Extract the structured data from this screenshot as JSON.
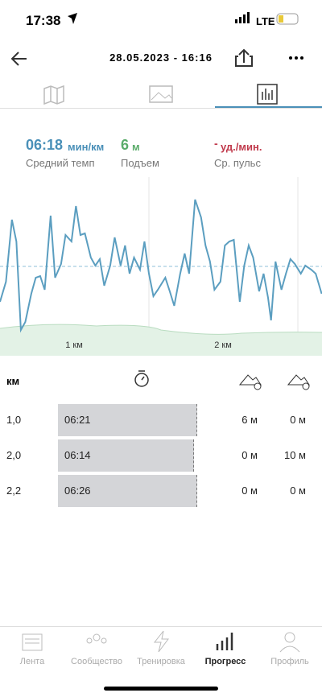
{
  "status": {
    "time": "17:38",
    "network": "LTE"
  },
  "header": {
    "title": "28.05.2023 - 16:16"
  },
  "stats": [
    {
      "value": "06:18",
      "unit": "мин/км",
      "label": "Средний темп"
    },
    {
      "value": "6",
      "unit": "м",
      "label": "Подъем"
    },
    {
      "value": "-",
      "unit": "уд./мин.",
      "label": "Ср. пульс"
    }
  ],
  "chart_data": {
    "type": "line",
    "x_labels": [
      "1 км",
      "2 км"
    ],
    "x": [
      0,
      0.04,
      0.08,
      0.11,
      0.14,
      0.17,
      0.21,
      0.24,
      0.27,
      0.3,
      0.34,
      0.37,
      0.41,
      0.44,
      0.48,
      0.51,
      0.54,
      0.57,
      0.61,
      0.64,
      0.67,
      0.7,
      0.74,
      0.77,
      0.81,
      0.84,
      0.87,
      0.9,
      0.94,
      0.97,
      1.0,
      1.03,
      1.06,
      1.11,
      1.14,
      1.17,
      1.21,
      1.24,
      1.27,
      1.31,
      1.35,
      1.38,
      1.41,
      1.44,
      1.48,
      1.51,
      1.54,
      1.57,
      1.61,
      1.64,
      1.67,
      1.7,
      1.74,
      1.77,
      1.8,
      1.82,
      1.85,
      1.89,
      1.92,
      1.95,
      1.98,
      2.02,
      2.05,
      2.09,
      2.12,
      2.16
    ],
    "values": [
      55,
      80,
      157,
      130,
      20,
      30,
      65,
      85,
      87,
      70,
      162,
      85,
      102,
      138,
      130,
      174,
      138,
      140,
      110,
      100,
      108,
      75,
      100,
      135,
      100,
      125,
      90,
      110,
      95,
      130,
      90,
      62,
      70,
      85,
      68,
      50,
      90,
      115,
      90,
      182,
      160,
      125,
      105,
      70,
      80,
      125,
      130,
      132,
      55,
      100,
      125,
      110,
      68,
      90,
      60,
      32,
      105,
      70,
      90,
      108,
      102,
      90,
      100,
      95,
      90,
      65
    ],
    "color": "#5b9ec0"
  },
  "table": {
    "header": "км",
    "rows": [
      [
        "1,0",
        "06:21",
        "6 м",
        "0 м"
      ],
      [
        "2,0",
        "06:14",
        "0 м",
        "10 м"
      ],
      [
        "2,2",
        "06:26",
        "0 м",
        "0 м"
      ]
    ]
  },
  "nav": [
    "Лента",
    "Сообщество",
    "Тренировка",
    "Прогресс",
    "Профиль"
  ]
}
